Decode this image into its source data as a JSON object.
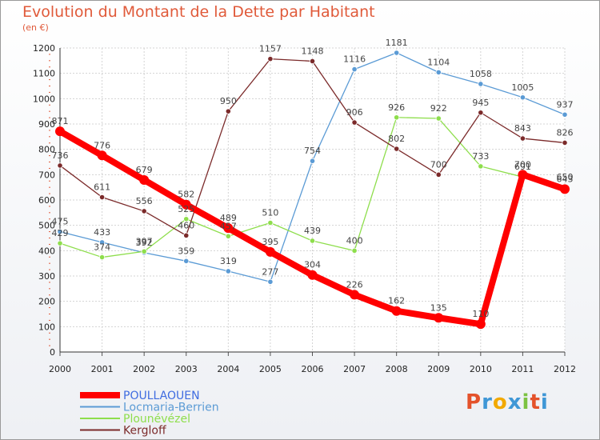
{
  "chart_data": {
    "type": "line",
    "title": "Evolution du Montant de la Dette par Habitant",
    "subtitle": "(en €)",
    "x": [
      "2000",
      "2001",
      "2002",
      "2003",
      "2004",
      "2005",
      "2006",
      "2007",
      "2008",
      "2009",
      "2010",
      "2011",
      "2012"
    ],
    "ylim": [
      0,
      1200
    ],
    "yticks": [
      0,
      100,
      200,
      300,
      400,
      500,
      600,
      700,
      800,
      900,
      1000,
      1100,
      1200
    ],
    "grid": true,
    "legend_position": "bottom-left",
    "series": [
      {
        "name": "POULLAOUEN",
        "color": "#ff0000",
        "values": [
          871,
          776,
          679,
          582,
          489,
          395,
          304,
          226,
          162,
          135,
          110,
          700,
          643
        ]
      },
      {
        "name": "Locmaria-Berrien",
        "color": "#5b9bd5",
        "values": [
          475,
          433,
          392,
          359,
          319,
          277,
          754,
          1116,
          1181,
          1104,
          1058,
          1005,
          937
        ]
      },
      {
        "name": "Plounévézel",
        "color": "#8ede4c",
        "values": [
          429,
          374,
          397,
          525,
          457,
          510,
          439,
          400,
          926,
          922,
          733,
          691,
          650
        ]
      },
      {
        "name": "Kergloff",
        "color": "#7b2a2a",
        "values": [
          736,
          611,
          556,
          460,
          950,
          1157,
          1148,
          906,
          802,
          700,
          945,
          843,
          826
        ]
      }
    ]
  },
  "logo": {
    "text": "Proxiti",
    "colors": [
      "#e4522b",
      "#3f97d6",
      "#f2a900",
      "#3f97d6",
      "#7cc242",
      "#e4522b",
      "#3f97d6"
    ]
  }
}
